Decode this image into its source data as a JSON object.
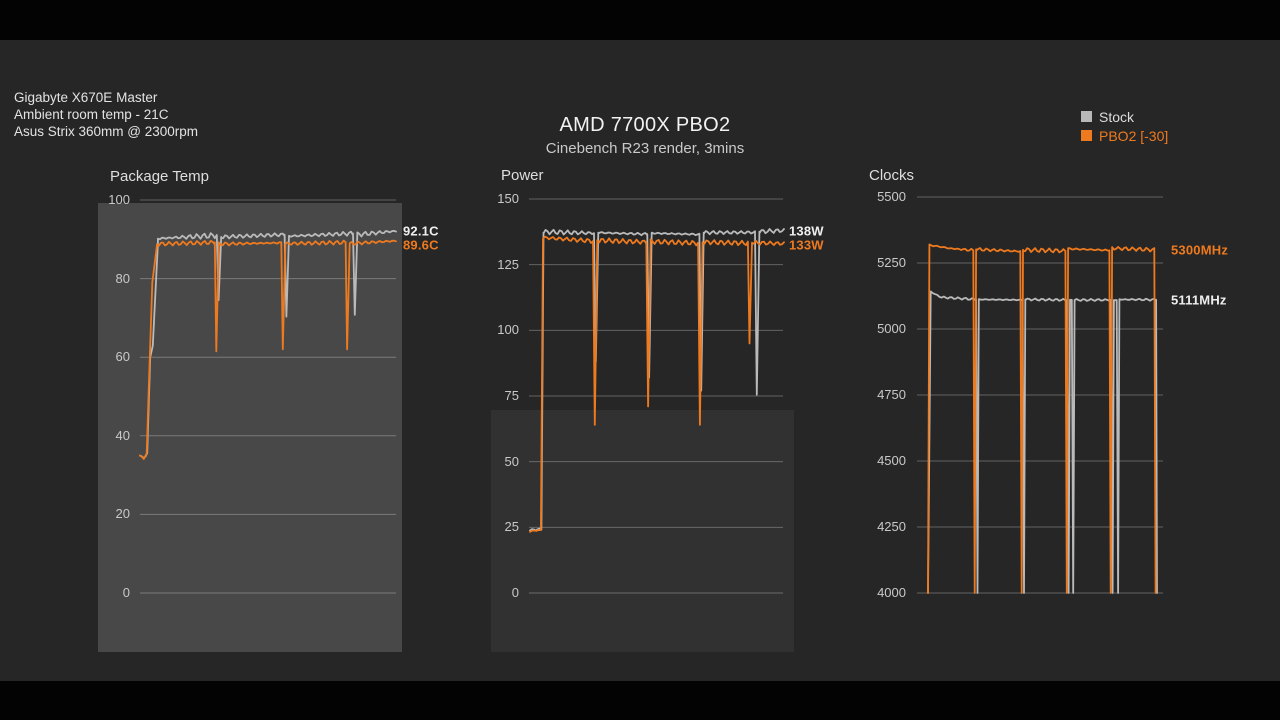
{
  "header": {
    "system_info": [
      "Gigabyte X670E Master",
      "Ambient room temp - 21C",
      "Asus Strix 360mm @ 2300rpm"
    ],
    "title": "AMD 7700X PBO2",
    "subtitle": "Cinebench R23 render, 3mins"
  },
  "legend": {
    "position": "top-right",
    "items": [
      {
        "label": "Stock",
        "color": "#b8b8b8",
        "text_color": "#dcdcdc"
      },
      {
        "label": "PBO2 [-30]",
        "color": "#ee7a1f",
        "text_color": "#ee7a1f"
      }
    ]
  },
  "colors": {
    "stock_line": "#bababa",
    "pbo2_line": "#ee7a1f",
    "annotation_white": "#efefef",
    "annotation_orange": "#ee7a1f"
  },
  "chart_data": [
    {
      "type": "line",
      "title": "Package Temp",
      "unit": "C",
      "xlabel": "",
      "ylabel": "",
      "ylim": [
        0,
        100
      ],
      "yticks": [
        0,
        20,
        40,
        60,
        80,
        100
      ],
      "grid": "horizontal-only",
      "annotations": [
        {
          "text": "92.1C",
          "value": 92.1,
          "series": "Stock",
          "color": "#efefef"
        },
        {
          "text": "89.6C",
          "value": 89.6,
          "series": "PBO2 [-30]",
          "color": "#ee7a1f"
        }
      ],
      "series": [
        {
          "name": "Stock",
          "color": "#bababa",
          "final_value": 92.1,
          "segments": [
            [
              0.0,
              0.015,
              35.0,
              34.3,
              0.2
            ],
            [
              0.015,
              0.028,
              34.3,
              35.5,
              0.2
            ],
            [
              0.028,
              0.04,
              35.5,
              60.0,
              0
            ],
            [
              0.04,
              0.05,
              60.0,
              63.0,
              0.3
            ],
            [
              0.05,
              0.07,
              63.0,
              89.0,
              0
            ],
            [
              0.07,
              0.3,
              90.2,
              91.0,
              0.7
            ],
            [
              0.3,
              0.307,
              91.0,
              74.5,
              0
            ],
            [
              0.307,
              0.317,
              74.5,
              90.6,
              0
            ],
            [
              0.317,
              0.565,
              90.6,
              91.2,
              0.7
            ],
            [
              0.565,
              0.572,
              91.2,
              70.3,
              0
            ],
            [
              0.572,
              0.582,
              70.3,
              90.8,
              0
            ],
            [
              0.582,
              0.832,
              90.8,
              91.5,
              0.7
            ],
            [
              0.832,
              0.839,
              91.5,
              70.8,
              0
            ],
            [
              0.839,
              0.849,
              70.8,
              91.2,
              0
            ],
            [
              0.849,
              1.0,
              91.2,
              92.1,
              0.6
            ]
          ]
        },
        {
          "name": "PBO2 [-30]",
          "color": "#ee7a1f",
          "final_value": 89.6,
          "segments": [
            [
              0.0,
              0.015,
              35.0,
              34.1,
              0.2
            ],
            [
              0.015,
              0.026,
              34.1,
              35.5,
              0.2
            ],
            [
              0.026,
              0.048,
              35.5,
              79.0,
              0
            ],
            [
              0.048,
              0.066,
              79.0,
              88.4,
              0
            ],
            [
              0.066,
              0.292,
              88.8,
              89.2,
              0.5
            ],
            [
              0.292,
              0.298,
              89.2,
              61.5,
              0
            ],
            [
              0.298,
              0.308,
              61.5,
              88.8,
              0
            ],
            [
              0.308,
              0.552,
              88.8,
              89.1,
              0.5
            ],
            [
              0.552,
              0.558,
              89.1,
              62.0,
              0
            ],
            [
              0.558,
              0.568,
              62.0,
              88.9,
              0
            ],
            [
              0.568,
              0.803,
              88.9,
              89.2,
              0.5
            ],
            [
              0.803,
              0.809,
              89.2,
              62.0,
              0
            ],
            [
              0.809,
              0.819,
              62.0,
              88.9,
              0
            ],
            [
              0.819,
              1.0,
              88.9,
              89.6,
              0.5
            ]
          ]
        }
      ]
    },
    {
      "type": "line",
      "title": "Power",
      "unit": "W",
      "xlabel": "",
      "ylabel": "",
      "ylim": [
        0,
        150
      ],
      "yticks": [
        0,
        25,
        50,
        75,
        100,
        125,
        150
      ],
      "grid": "horizontal-only",
      "annotations": [
        {
          "text": "138W",
          "value": 138,
          "series": "Stock",
          "color": "#efefef"
        },
        {
          "text": "133W",
          "value": 133,
          "series": "PBO2 [-30]",
          "color": "#ee7a1f"
        }
      ],
      "series": [
        {
          "name": "Stock",
          "color": "#bababa",
          "final_value": 138,
          "segments": [
            [
              0.0,
              0.045,
              24.0,
              24.3,
              0.3
            ],
            [
              0.045,
              0.053,
              24.3,
              137.2,
              0
            ],
            [
              0.053,
              0.252,
              137.5,
              137.0,
              0.9
            ],
            [
              0.252,
              0.259,
              137.0,
              88.0,
              0
            ],
            [
              0.259,
              0.269,
              88.0,
              137.2,
              0
            ],
            [
              0.269,
              0.462,
              137.2,
              136.6,
              0.9
            ],
            [
              0.462,
              0.469,
              136.6,
              82.0,
              0
            ],
            [
              0.469,
              0.479,
              82.0,
              137.0,
              0
            ],
            [
              0.479,
              0.667,
              137.0,
              136.5,
              0.9
            ],
            [
              0.667,
              0.674,
              136.5,
              77.0,
              0
            ],
            [
              0.674,
              0.684,
              77.0,
              137.2,
              0
            ],
            [
              0.684,
              0.886,
              137.2,
              137.3,
              0.9
            ],
            [
              0.886,
              0.893,
              137.3,
              75.5,
              0
            ],
            [
              0.893,
              0.903,
              75.5,
              137.6,
              0
            ],
            [
              0.903,
              1.0,
              137.6,
              138.0,
              0.8
            ]
          ]
        },
        {
          "name": "PBO2 [-30]",
          "color": "#ee7a1f",
          "final_value": 133,
          "segments": [
            [
              0.0,
              0.043,
              23.5,
              24.0,
              0.3
            ],
            [
              0.043,
              0.051,
              24.0,
              135.0,
              0
            ],
            [
              0.051,
              0.248,
              135.3,
              134.0,
              0.9
            ],
            [
              0.248,
              0.255,
              134.0,
              64.0,
              0
            ],
            [
              0.255,
              0.265,
              64.0,
              134.3,
              0
            ],
            [
              0.265,
              0.458,
              134.3,
              133.6,
              0.9
            ],
            [
              0.458,
              0.465,
              133.6,
              71.0,
              0
            ],
            [
              0.465,
              0.475,
              71.0,
              133.8,
              0
            ],
            [
              0.475,
              0.662,
              133.8,
              133.2,
              0.9
            ],
            [
              0.662,
              0.669,
              133.2,
              64.0,
              0
            ],
            [
              0.669,
              0.679,
              64.0,
              133.6,
              0
            ],
            [
              0.679,
              0.858,
              133.6,
              133.2,
              0.9
            ],
            [
              0.858,
              0.864,
              133.2,
              95.0,
              0
            ],
            [
              0.864,
              0.874,
              95.0,
              133.4,
              0
            ],
            [
              0.874,
              1.0,
              133.4,
              133.0,
              0.8
            ]
          ]
        }
      ]
    },
    {
      "type": "line",
      "title": "Clocks",
      "unit": "MHz",
      "xlabel": "",
      "ylabel": "",
      "ylim": [
        4000,
        5500
      ],
      "yticks": [
        4000,
        4250,
        4500,
        4750,
        5000,
        5250,
        5500
      ],
      "grid": "horizontal-only",
      "annotations": [
        {
          "text": "5300MHz",
          "value": 5300,
          "series": "PBO2 [-30]",
          "color": "#ee7a1f"
        },
        {
          "text": "5111MHz",
          "value": 5111,
          "series": "Stock",
          "color": "#efefef"
        }
      ],
      "series": [
        {
          "name": "Stock",
          "color": "#bababa",
          "final_value": 5111,
          "segments": [
            [
              0.0,
              0.012,
              4000,
              5140,
              0
            ],
            [
              0.012,
              0.06,
              5140,
              5120,
              4
            ],
            [
              0.06,
              0.21,
              5120,
              5112,
              4
            ],
            [
              0.21,
              0.216,
              5112,
              4000,
              0
            ],
            [
              0.216,
              0.222,
              4000,
              5112,
              0
            ],
            [
              0.222,
              0.413,
              5112,
              5110,
              4
            ],
            [
              0.413,
              0.419,
              5110,
              4000,
              0
            ],
            [
              0.419,
              0.425,
              4000,
              5112,
              0
            ],
            [
              0.425,
              0.608,
              5112,
              5110,
              4
            ],
            [
              0.608,
              0.614,
              5110,
              4000,
              0
            ],
            [
              0.614,
              0.62,
              4000,
              5110,
              0
            ],
            [
              0.62,
              0.628,
              5110,
              5110,
              2
            ],
            [
              0.628,
              0.634,
              5110,
              4000,
              0
            ],
            [
              0.634,
              0.64,
              4000,
              5110,
              0
            ],
            [
              0.64,
              0.8,
              5110,
              5110,
              4
            ],
            [
              0.8,
              0.806,
              5110,
              4000,
              0
            ],
            [
              0.806,
              0.812,
              4000,
              5110,
              0
            ],
            [
              0.812,
              0.824,
              5110,
              5110,
              2
            ],
            [
              0.824,
              0.83,
              5110,
              4000,
              0
            ],
            [
              0.83,
              0.836,
              4000,
              5112,
              0
            ],
            [
              0.836,
              0.996,
              5112,
              5111,
              4
            ],
            [
              0.996,
              1.0,
              5111,
              4000,
              0
            ]
          ]
        },
        {
          "name": "PBO2 [-30]",
          "color": "#ee7a1f",
          "final_value": 5300,
          "segments": [
            [
              0.0,
              0.006,
              4000,
              5318,
              0
            ],
            [
              0.006,
              0.1,
              5318,
              5305,
              7
            ],
            [
              0.1,
              0.198,
              5305,
              5298,
              7
            ],
            [
              0.198,
              0.204,
              5298,
              4000,
              0
            ],
            [
              0.204,
              0.21,
              4000,
              5302,
              0
            ],
            [
              0.21,
              0.403,
              5302,
              5294,
              7
            ],
            [
              0.403,
              0.409,
              5294,
              4000,
              0
            ],
            [
              0.409,
              0.415,
              4000,
              5300,
              0
            ],
            [
              0.415,
              0.6,
              5300,
              5296,
              8
            ],
            [
              0.6,
              0.606,
              5296,
              4000,
              0
            ],
            [
              0.606,
              0.612,
              4000,
              5304,
              0
            ],
            [
              0.612,
              0.792,
              5304,
              5298,
              8
            ],
            [
              0.792,
              0.798,
              5298,
              4000,
              0
            ],
            [
              0.798,
              0.804,
              4000,
              5306,
              0
            ],
            [
              0.804,
              0.988,
              5306,
              5300,
              7
            ],
            [
              0.988,
              0.994,
              5300,
              4000,
              0
            ]
          ]
        }
      ]
    }
  ]
}
